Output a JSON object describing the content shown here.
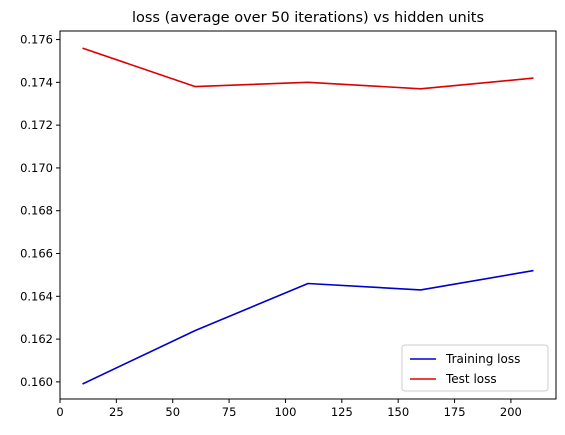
{
  "chart_data": {
    "type": "line",
    "title": "loss (average over 50 iterations) vs hidden units",
    "xlabel": "",
    "ylabel": "",
    "x": [
      10,
      60,
      110,
      160,
      210
    ],
    "series": [
      {
        "name": "Training loss",
        "color": "#0000cc",
        "values": [
          0.1599,
          0.1624,
          0.1646,
          0.1643,
          0.1652
        ]
      },
      {
        "name": "Test loss",
        "color": "#dd0000",
        "values": [
          0.1756,
          0.1738,
          0.174,
          0.1737,
          0.1742
        ]
      }
    ],
    "xlim": [
      0,
      220
    ],
    "ylim": [
      0.1592,
      0.1764
    ],
    "xticks": [
      "0",
      "25",
      "50",
      "75",
      "100",
      "125",
      "150",
      "175",
      "200"
    ],
    "yticks": [
      "0.160",
      "0.162",
      "0.164",
      "0.166",
      "0.168",
      "0.170",
      "0.172",
      "0.174",
      "0.176"
    ],
    "grid": false,
    "legend_position": "lower-right"
  }
}
